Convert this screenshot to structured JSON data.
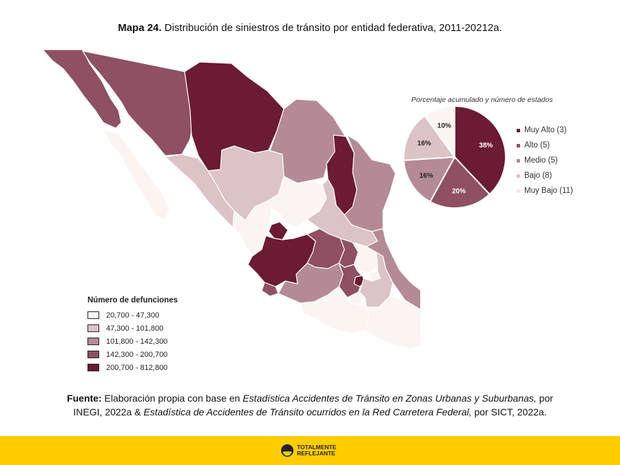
{
  "title": {
    "bold": "Mapa 24.",
    "text": "Distribución de siniestros de tránsito por entidad federativa, 2011-20212a."
  },
  "colors": {
    "muy_alto": "#6b1b33",
    "alto": "#8e5062",
    "medio": "#b48a95",
    "bajo": "#dcc3c6",
    "muy_bajo": "#fbf4f1"
  },
  "pie": {
    "caption": "Porcentaje acumulado y número de estados",
    "slices": [
      {
        "label": "38%",
        "value": 38,
        "color": "#6b1b33",
        "text_color": "#ffffff"
      },
      {
        "label": "20%",
        "value": 20,
        "color": "#8e5062",
        "text_color": "#ffffff"
      },
      {
        "label": "16%",
        "value": 16,
        "color": "#b48a95",
        "text_color": "#222222"
      },
      {
        "label": "16%",
        "value": 16,
        "color": "#dcc3c6",
        "text_color": "#222222"
      },
      {
        "label": "10%",
        "value": 10,
        "color": "#fbf4f1",
        "text_color": "#222222"
      }
    ],
    "legend": [
      {
        "label": "Muy Alto (3)",
        "color": "#6b1b33"
      },
      {
        "label": "Alto (5)",
        "color": "#8e5062"
      },
      {
        "label": "Medio (5)",
        "color": "#b48a95"
      },
      {
        "label": "Bajo (8)",
        "color": "#dcc3c6"
      },
      {
        "label": "Muy Bajo (11)",
        "color": "#fbf4f1"
      }
    ]
  },
  "map_legend": {
    "title": "Número de defunciones",
    "items": [
      {
        "label": "20,700 - 47,300",
        "color": "#fbf4f1"
      },
      {
        "label": "47,300 - 101,800",
        "color": "#dcc3c6"
      },
      {
        "label": "101,800 - 142,300",
        "color": "#b48a95"
      },
      {
        "label": "142,300 - 200,700",
        "color": "#8e5062"
      },
      {
        "label": "200,700 - 812,800",
        "color": "#6b1b33"
      }
    ]
  },
  "source": {
    "label": "Fuente:",
    "part1": " Elaboración propia con base en ",
    "italic1": "Estadística Accidentes de Tránsito en Zonas Urbanas y Suburbanas,",
    "part2": " por",
    "part3": "INEGI, 2022a & ",
    "italic2": "Estadística de Accidentes de Tránsito ocurridos en la Red Carretera Federal,",
    "part4": " por SICT, 2022a."
  },
  "footer": {
    "logo_line1": "TOTALMENTE",
    "logo_line2": "REFLEJANTE"
  }
}
